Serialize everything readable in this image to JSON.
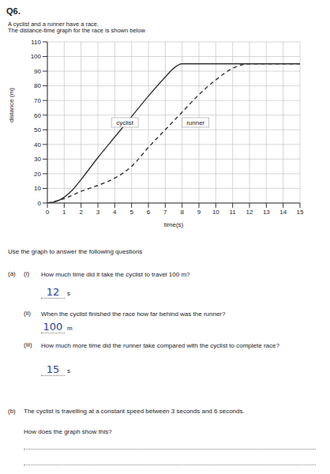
{
  "header": {
    "number": "Q6.",
    "intro": [
      "A cyclist and a runner have a race.",
      "The distance-time graph for the race is shown below"
    ]
  },
  "chart_data": {
    "type": "line",
    "x_label": "time(s)",
    "y_label": "distance (m)",
    "xlim": [
      0,
      15
    ],
    "xticks": [
      0,
      1,
      2,
      3,
      4,
      5,
      6,
      7,
      8,
      9,
      10,
      11,
      12,
      13,
      14,
      15
    ],
    "ylim": [
      0,
      110
    ],
    "yticks": [
      0,
      10,
      20,
      30,
      40,
      50,
      60,
      70,
      80,
      90,
      100,
      110
    ],
    "grid": true,
    "series": [
      {
        "name": "cyclist",
        "color": "#333333",
        "line_style": "solid",
        "x": [
          0,
          0.5,
          1,
          1.5,
          2,
          3,
          4,
          5,
          6,
          7,
          7.5,
          8,
          9,
          10,
          11,
          12,
          13,
          14,
          15
        ],
        "values": [
          0,
          1,
          4,
          9,
          16,
          31,
          45,
          59,
          73,
          86,
          92,
          95,
          95,
          95,
          95,
          95,
          95,
          95,
          95
        ]
      },
      {
        "name": "runner",
        "color": "#333333",
        "line_style": "dashed",
        "x": [
          0,
          1,
          2,
          3,
          4,
          5,
          6,
          7,
          8,
          9,
          10,
          11,
          12,
          13,
          14,
          15
        ],
        "values": [
          0,
          3,
          8,
          12,
          17,
          25,
          38,
          50,
          62,
          74,
          84,
          92,
          95,
          95,
          95,
          95
        ]
      }
    ],
    "annotations": [
      {
        "text": "cyclist",
        "x": 4.6,
        "y": 55
      },
      {
        "text": "runner",
        "x": 8.8,
        "y": 55
      }
    ]
  },
  "instruction": "Use the graph to answer the following questions",
  "questions": [
    {
      "label": "(a)",
      "sub": "(i)",
      "text": "How much time did it take the cyclist to travel 100 m?",
      "answer": "12",
      "unit": "s"
    },
    {
      "label": "",
      "sub": "(ii)",
      "text": "When the cyclist finished the race how far behind was the runner?",
      "answer": "100",
      "unit": "m"
    },
    {
      "label": "",
      "sub": "(iii)",
      "text": "How much more time did the runner take compared with the cyclist to complete race?",
      "answer": "15",
      "unit": "s"
    }
  ],
  "part_b": {
    "label": "(b)",
    "text": "The cyclist is travelling at a constant speed between 3 seconds and 6 seconds.",
    "question": "How does the graph show this?"
  }
}
